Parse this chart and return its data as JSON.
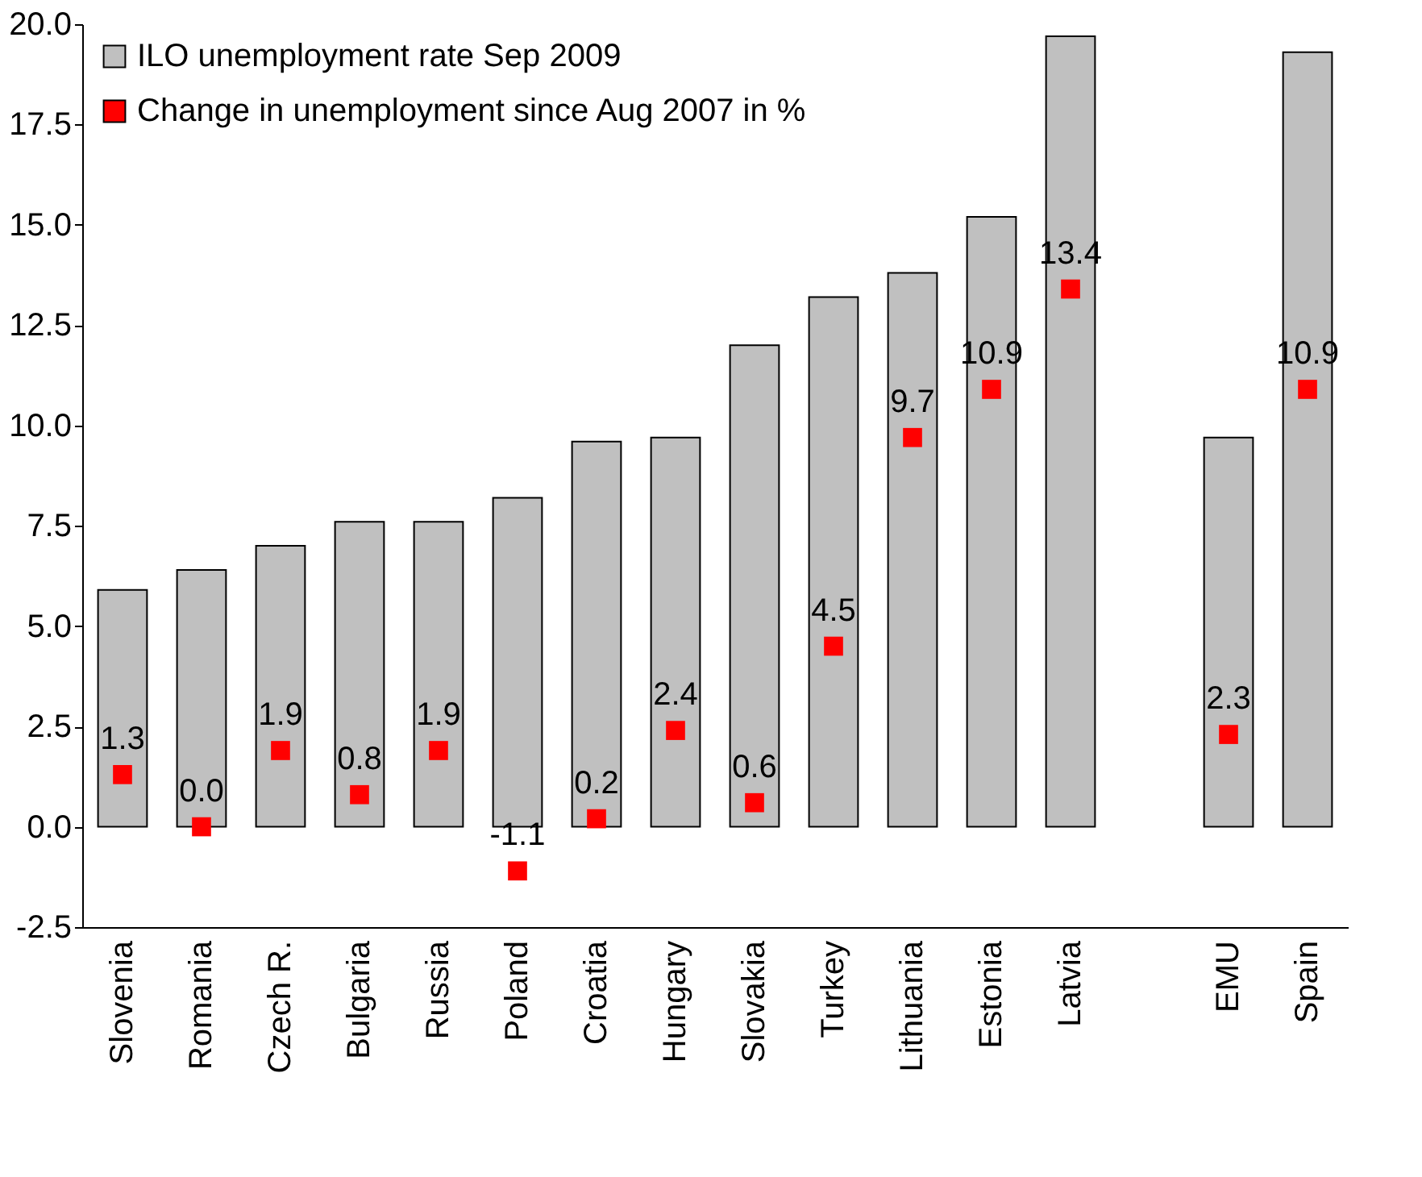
{
  "chart_data": {
    "type": "bar",
    "categories": [
      "Slovenia",
      "Romania",
      "Czech R.",
      "Bulgaria",
      "Russia",
      "Poland",
      "Croatia",
      "Hungary",
      "Slovakia",
      "Turkey",
      "Lithuania",
      "Estonia",
      "Latvia",
      null,
      "EMU",
      "Spain"
    ],
    "series": [
      {
        "name": "ILO unemployment rate Sep 2009",
        "color": "#c0c0c0",
        "values": [
          5.9,
          6.4,
          7.0,
          7.6,
          7.6,
          8.2,
          9.6,
          9.7,
          12.0,
          13.2,
          13.8,
          15.2,
          19.7,
          null,
          9.7,
          19.3
        ]
      },
      {
        "name": "Change in unemployment since Aug 2007 in %",
        "type": "scatter",
        "marker": "square",
        "color": "#ff0000",
        "values": [
          1.3,
          0.0,
          1.9,
          0.8,
          1.9,
          -1.1,
          0.2,
          2.4,
          0.6,
          4.5,
          9.7,
          10.9,
          13.4,
          null,
          2.3,
          10.9
        ],
        "value_labels": [
          "1.3",
          "0.0",
          "1.9",
          "0.8",
          "1.9",
          "-1.1",
          "0.2",
          "2.4",
          "0.6",
          "4.5",
          "9.7",
          "10.9",
          "13.4",
          null,
          "2.3",
          "10.9"
        ]
      }
    ],
    "ylim": [
      -2.5,
      20
    ],
    "yticks": [
      {
        "value": -2.5,
        "label": "-2.5"
      },
      {
        "value": 0,
        "label": "0.0"
      },
      {
        "value": 2.5,
        "label": "2.5"
      },
      {
        "value": 5,
        "label": "5.0"
      },
      {
        "value": 7.5,
        "label": "7.5"
      },
      {
        "value": 10,
        "label": "10.0"
      },
      {
        "value": 12.5,
        "label": "12.5"
      },
      {
        "value": 15,
        "label": "15.0"
      },
      {
        "value": 17.5,
        "label": "17.5"
      },
      {
        "value": 20,
        "label": "20.0"
      }
    ],
    "grid": false,
    "legend": "top left"
  }
}
